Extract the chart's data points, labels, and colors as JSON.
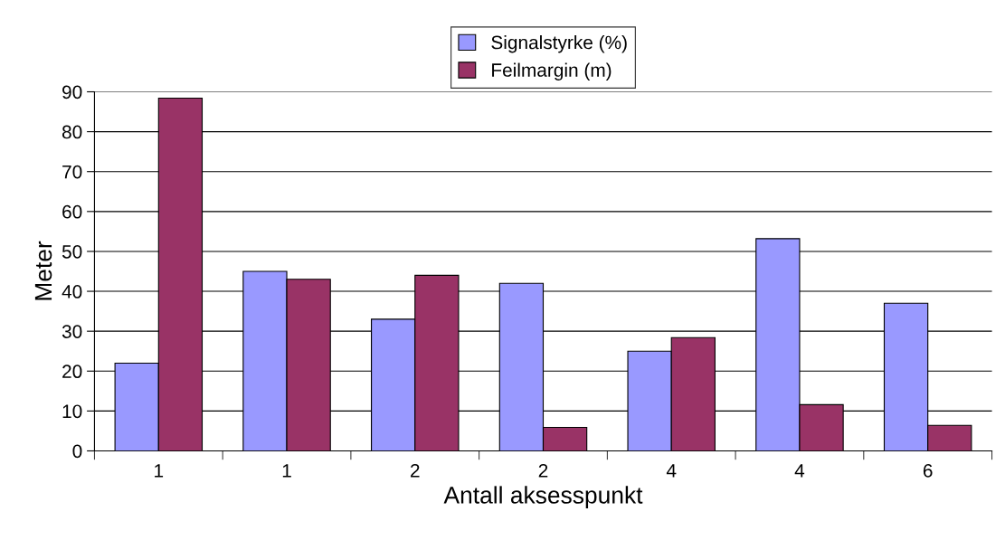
{
  "chart_data": {
    "type": "bar",
    "xlabel": "Antall aksesspunkt",
    "ylabel": "Meter",
    "categories": [
      "1",
      "1",
      "2",
      "2",
      "4",
      "4",
      "6"
    ],
    "series": [
      {
        "name": "Signalstyrke (%)",
        "color": "#9999ff",
        "values": [
          22,
          45,
          33,
          42,
          25,
          53.2,
          37
        ]
      },
      {
        "name": "Feilmargin (m)",
        "color": "#993366",
        "values": [
          88.4,
          43,
          44,
          5.9,
          28.4,
          11.6,
          6.4
        ]
      }
    ],
    "ylim": [
      0,
      90
    ],
    "yticks": [
      0,
      10,
      20,
      30,
      40,
      50,
      60,
      70,
      80,
      90
    ],
    "grid": "y",
    "legend": "top"
  }
}
